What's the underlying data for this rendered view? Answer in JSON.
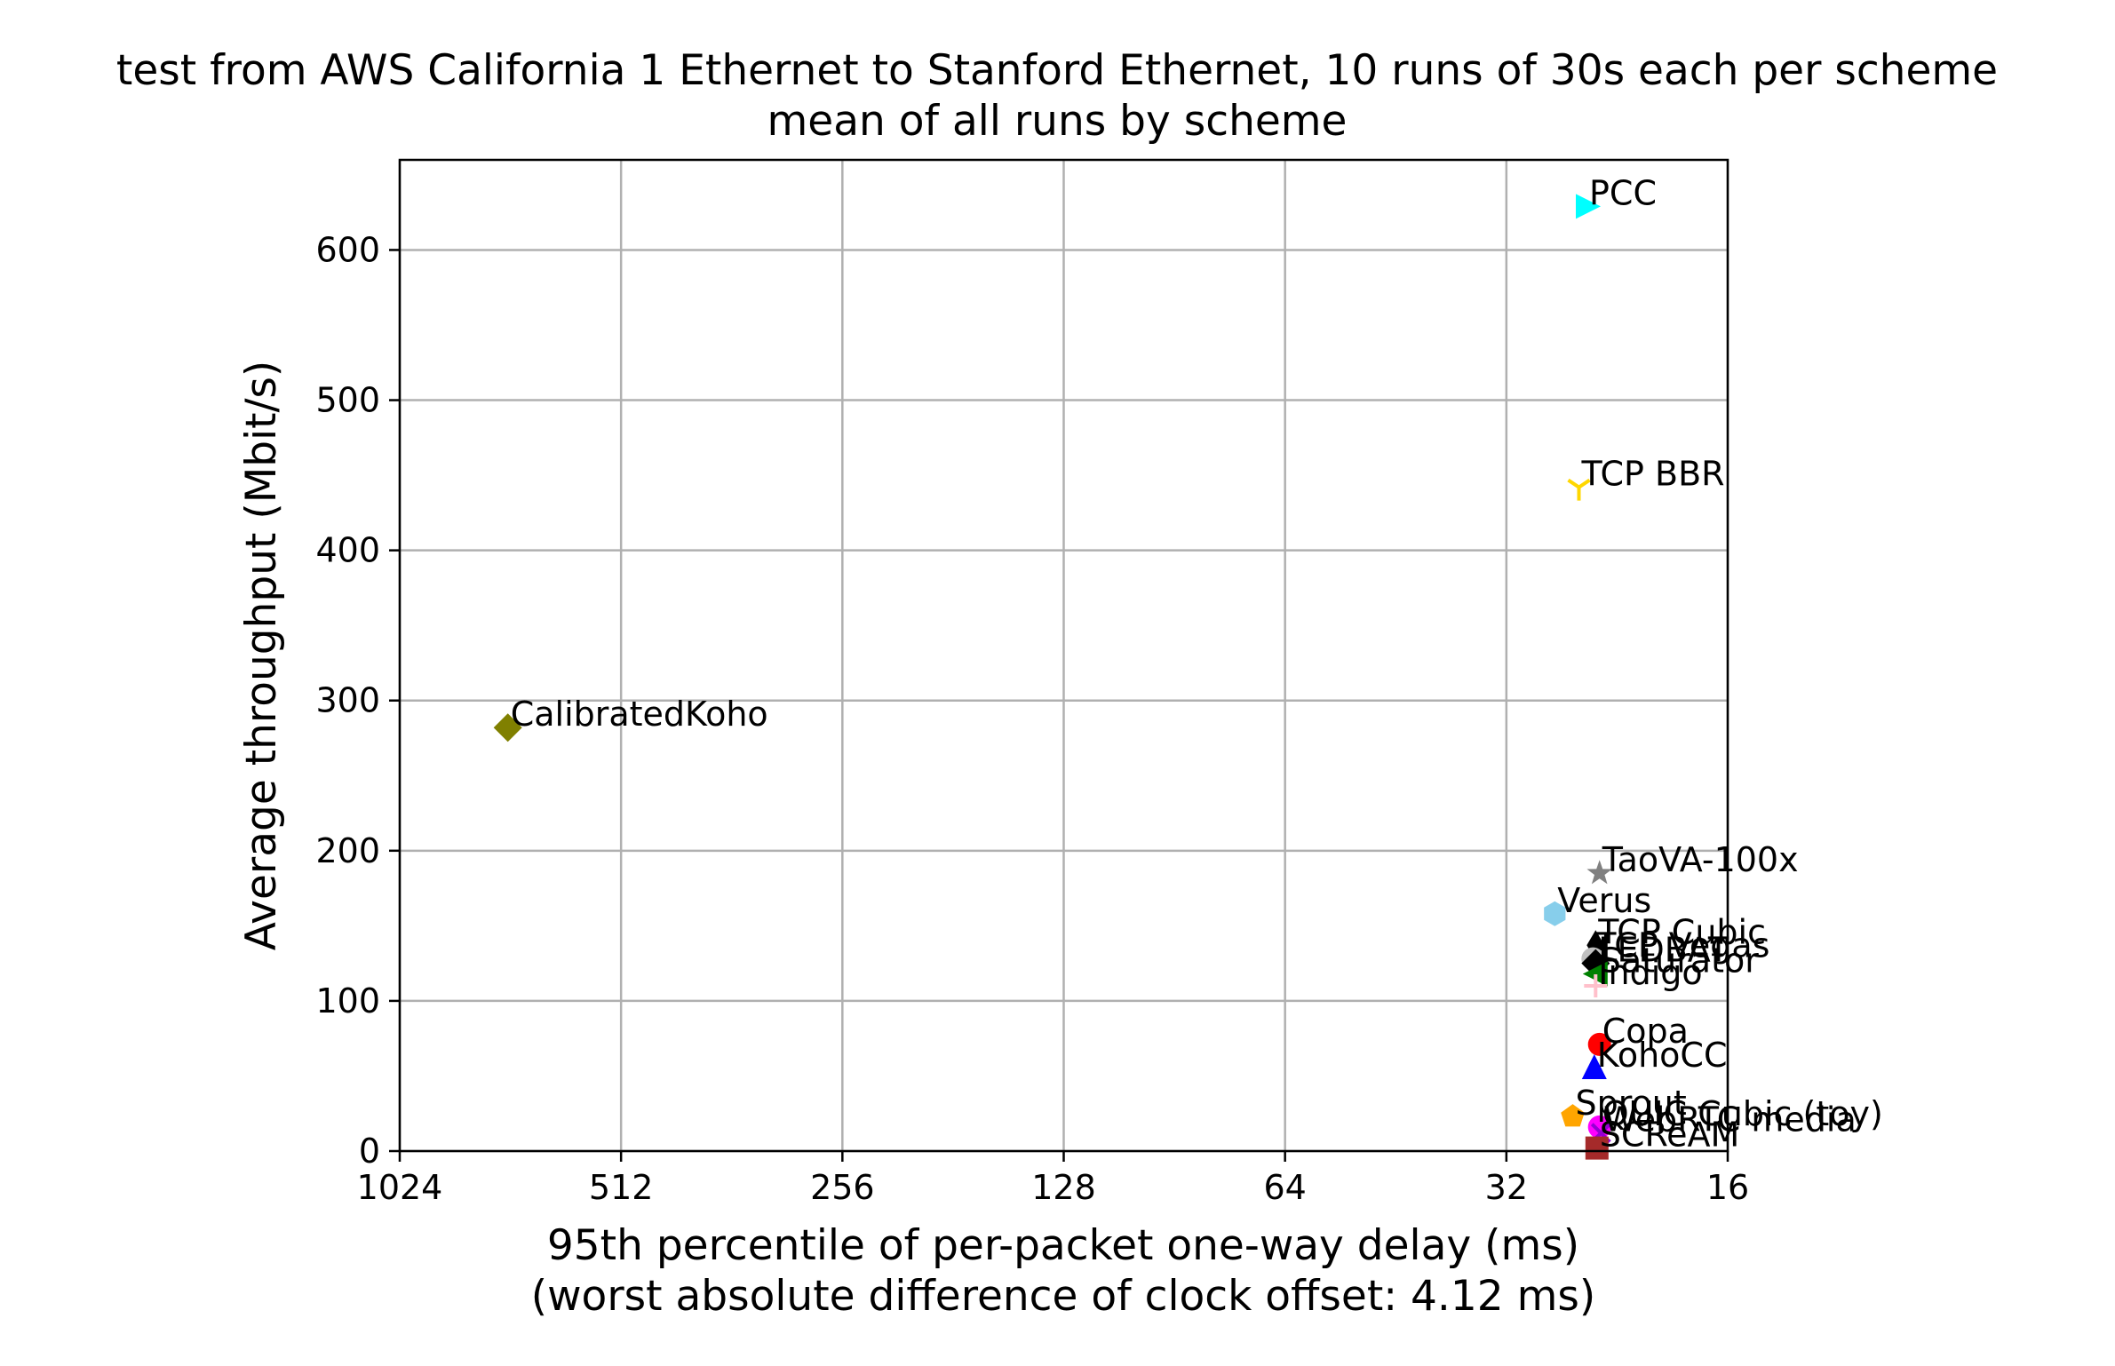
{
  "chart_data": {
    "type": "scatter",
    "title": "test from AWS California 1 Ethernet to Stanford Ethernet, 10 runs of 30s each per scheme",
    "subtitle": "mean of all runs by scheme",
    "xlabel": "95th percentile of per-packet one-way delay (ms)",
    "xlabel_note": "(worst absolute difference of clock offset: 4.12 ms)",
    "ylabel": "Average throughput (Mbit/s)",
    "x_scale": "log2",
    "x_inverted": true,
    "xlim": [
      1024,
      16
    ],
    "ylim": [
      0,
      660
    ],
    "x_ticks": [
      1024,
      512,
      256,
      128,
      64,
      32,
      16
    ],
    "x_tick_labels": [
      "1024",
      "512",
      "256",
      "128",
      "64",
      "32",
      "16"
    ],
    "y_ticks": [
      0,
      100,
      200,
      300,
      400,
      500,
      600
    ],
    "y_tick_labels": [
      "0",
      "100",
      "200",
      "300",
      "400",
      "500",
      "600"
    ],
    "grid": true,
    "points": [
      {
        "name": "PCC",
        "x": 24.9,
        "y": 629,
        "color": "#00ffff",
        "marker": "triangle-right"
      },
      {
        "name": "TCP BBR",
        "x": 25.5,
        "y": 442,
        "color": "#ffd700",
        "marker": "tri-down"
      },
      {
        "name": "CalibratedKoho",
        "x": 730,
        "y": 282,
        "color": "#808000",
        "marker": "diamond"
      },
      {
        "name": "TaoVA-100x",
        "x": 23.9,
        "y": 185,
        "color": "#808080",
        "marker": "star"
      },
      {
        "name": "Verus",
        "x": 27.5,
        "y": 158,
        "color": "#87ceeb",
        "marker": "hexagon"
      },
      {
        "name": "TCP Cubic",
        "x": 24.2,
        "y": 137,
        "color": "#000000",
        "marker": "thin-diamond"
      },
      {
        "name": "TCP Vegas",
        "x": 24.4,
        "y": 128,
        "color": "#c0c0c0",
        "marker": "circle"
      },
      {
        "name": "LEDBAT",
        "x": 24.2,
        "y": 125,
        "color": "#000000",
        "marker": "diamond"
      },
      {
        "name": "Saturator",
        "x": 24.1,
        "y": 118,
        "color": "#008000",
        "marker": "triangle-left"
      },
      {
        "name": "Indigo",
        "x": 24.2,
        "y": 110,
        "color": "#ffc0cb",
        "marker": "plus"
      },
      {
        "name": "Copa",
        "x": 23.9,
        "y": 71,
        "color": "#ff0000",
        "marker": "circle"
      },
      {
        "name": "KohoCC",
        "x": 24.3,
        "y": 55,
        "color": "#0000ff",
        "marker": "triangle-up"
      },
      {
        "name": "Sprout",
        "x": 26.0,
        "y": 23,
        "color": "#ffa500",
        "marker": "pentagon"
      },
      {
        "name": "QUIC Cubic (toy)",
        "x": 23.9,
        "y": 16,
        "color": "#ff00ff",
        "marker": "circle"
      },
      {
        "name": "WebRTC media",
        "x": 23.8,
        "y": 12,
        "color": "#9400d3",
        "marker": "x"
      },
      {
        "name": "SCReAM",
        "x": 24.1,
        "y": 2,
        "color": "#a52a2a",
        "marker": "square"
      }
    ]
  }
}
